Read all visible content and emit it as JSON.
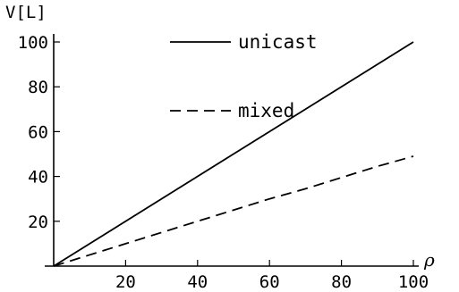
{
  "chart_data": {
    "type": "line",
    "title": "",
    "xlabel": "ρ",
    "ylabel": "V[L]",
    "xlim": [
      0,
      100
    ],
    "ylim": [
      0,
      100
    ],
    "x_ticks": [
      20,
      40,
      60,
      80,
      100
    ],
    "y_ticks": [
      20,
      40,
      60,
      80,
      100
    ],
    "grid": false,
    "legend_position": "top-center",
    "series": [
      {
        "name": "unicast",
        "style": "solid",
        "color": "#000000",
        "x": [
          0,
          100
        ],
        "y": [
          0,
          100
        ]
      },
      {
        "name": "mixed",
        "style": "dashed",
        "color": "#000000",
        "x": [
          0,
          10,
          20,
          30,
          40,
          50,
          60,
          70,
          80,
          90,
          100
        ],
        "y": [
          0,
          5,
          10,
          15,
          20,
          25,
          30,
          34.5,
          39.5,
          44.5,
          49
        ]
      }
    ]
  }
}
